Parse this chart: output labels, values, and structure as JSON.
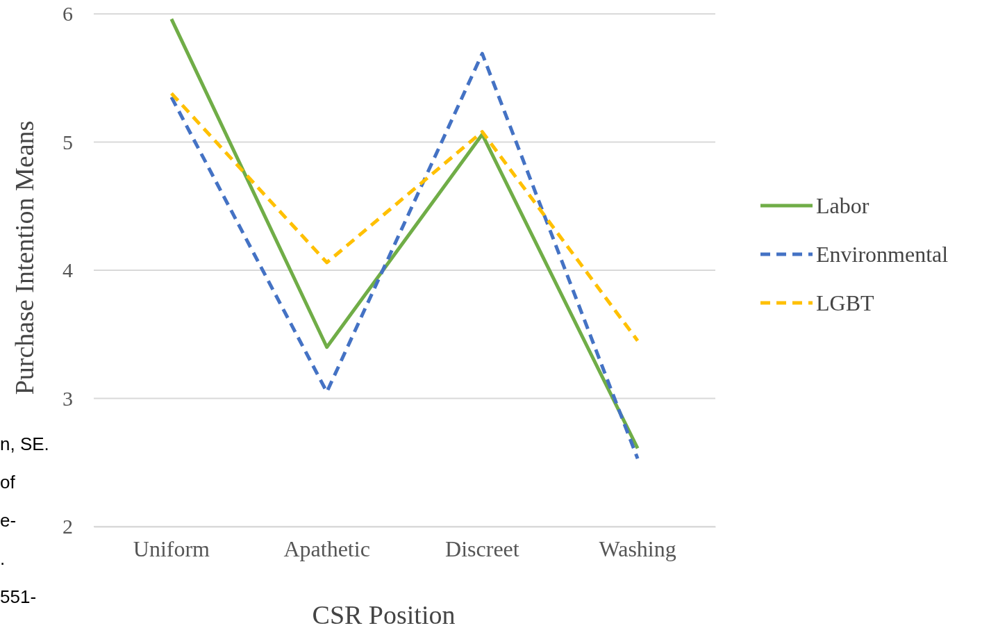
{
  "chart_data": {
    "type": "line",
    "xlabel": "CSR Position",
    "ylabel": "Purchase Intention Means",
    "categories": [
      "Uniform",
      "Apathetic",
      "Discreet",
      "Washing"
    ],
    "series": [
      {
        "name": "Labor",
        "color": "#70ad47",
        "line_style": "solid",
        "values": [
          5.96,
          3.4,
          5.06,
          2.61
        ]
      },
      {
        "name": "Environmental",
        "color": "#4472c4",
        "line_style": "dashed",
        "values": [
          5.35,
          3.05,
          5.69,
          2.53
        ]
      },
      {
        "name": "LGBT",
        "color": "#ffc000",
        "line_style": "dashed",
        "values": [
          5.38,
          4.06,
          5.08,
          3.45
        ]
      }
    ],
    "ylim": [
      2,
      6
    ],
    "yticks": [
      2,
      3,
      4,
      5,
      6
    ],
    "grid": "y",
    "legend": "right",
    "marker": "none",
    "annotations": [
      "n, SE.",
      "of",
      "e-",
      ".",
      "551-"
    ]
  }
}
